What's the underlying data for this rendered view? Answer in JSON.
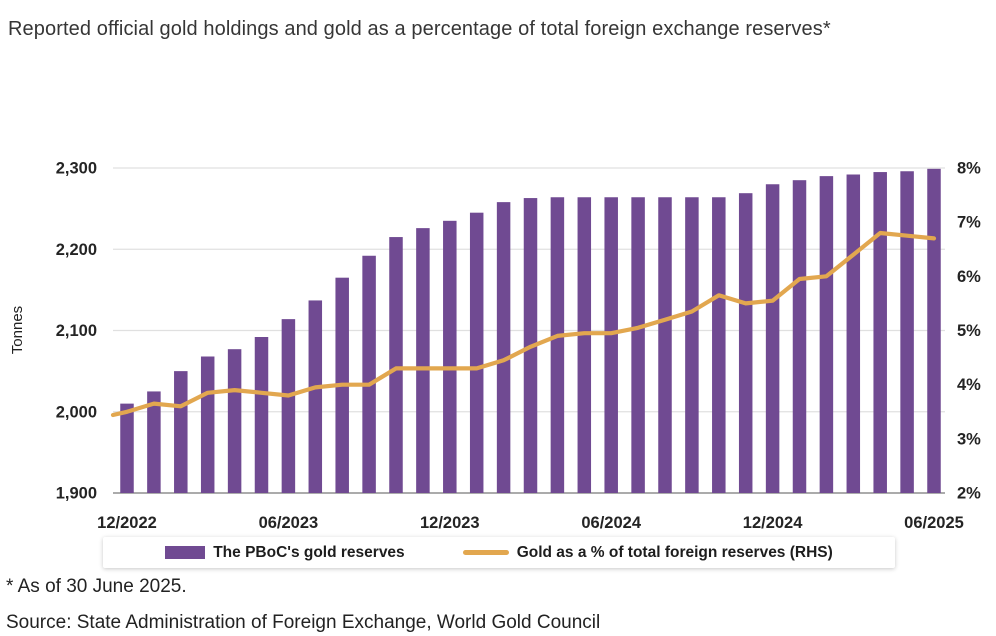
{
  "title": "Reported official gold holdings and gold as a percentage of total foreign exchange reserves*",
  "footnote": "* As of 30 June 2025.",
  "source": "Source: State Administration of Foreign Exchange, World Gold Council",
  "legend": {
    "bar_label": "The PBoC's gold reserves",
    "line_label": "Gold as a % of total foreign reserves (RHS)"
  },
  "style_colors": {
    "bar": "#704A92",
    "line": "#E2A74F",
    "grid": "#E0E0E0",
    "baseline": "#ABABAB",
    "axis_text": "#242424"
  },
  "chart_data": {
    "type": "bar",
    "title": "Reported official gold holdings and gold as a percentage of total foreign exchange reserves",
    "grid": "horizontal",
    "legend_position": "bottom",
    "categories": [
      "12/2022",
      "01/2023",
      "02/2023",
      "03/2023",
      "04/2023",
      "05/2023",
      "06/2023",
      "07/2023",
      "08/2023",
      "09/2023",
      "10/2023",
      "11/2023",
      "12/2023",
      "01/2024",
      "02/2024",
      "03/2024",
      "04/2024",
      "05/2024",
      "06/2024",
      "07/2024",
      "08/2024",
      "09/2024",
      "10/2024",
      "11/2024",
      "12/2024",
      "01/2025",
      "02/2025",
      "03/2025",
      "04/2025",
      "05/2025",
      "06/2025"
    ],
    "series": [
      {
        "name": "The PBoC's gold reserves",
        "type": "bar",
        "axis": "left",
        "unit": "tonnes",
        "values": [
          2010,
          2025,
          2050,
          2068,
          2077,
          2092,
          2114,
          2137,
          2165,
          2192,
          2215,
          2226,
          2235,
          2245,
          2258,
          2263,
          2264,
          2264,
          2264,
          2264,
          2264,
          2264,
          2264,
          2269,
          2280,
          2285,
          2290,
          2292,
          2295,
          2296,
          2299
        ]
      },
      {
        "name": "Gold as a % of total foreign reserves (RHS)",
        "type": "line",
        "axis": "right",
        "unit": "%",
        "values": [
          3.5,
          3.65,
          3.6,
          3.85,
          3.9,
          3.85,
          3.8,
          3.95,
          4.0,
          4.0,
          4.3,
          4.3,
          4.3,
          4.3,
          4.45,
          4.7,
          4.9,
          4.95,
          4.95,
          5.05,
          5.2,
          5.35,
          5.65,
          5.5,
          5.55,
          5.95,
          6.0,
          6.4,
          6.8,
          6.75,
          6.7
        ]
      }
    ],
    "left_axis": {
      "label": "Tonnes",
      "min": 1900,
      "max": 2300,
      "ticks": [
        "1,900",
        "2,000",
        "2,100",
        "2,200",
        "2,300"
      ]
    },
    "right_axis": {
      "min": 2,
      "max": 8,
      "ticks": [
        "2%",
        "3%",
        "4%",
        "5%",
        "6%",
        "7%",
        "8%"
      ]
    },
    "x_ticks": [
      "12/2022",
      "06/2023",
      "12/2023",
      "06/2024",
      "12/2024",
      "06/2025"
    ],
    "x_tick_every": 6
  }
}
